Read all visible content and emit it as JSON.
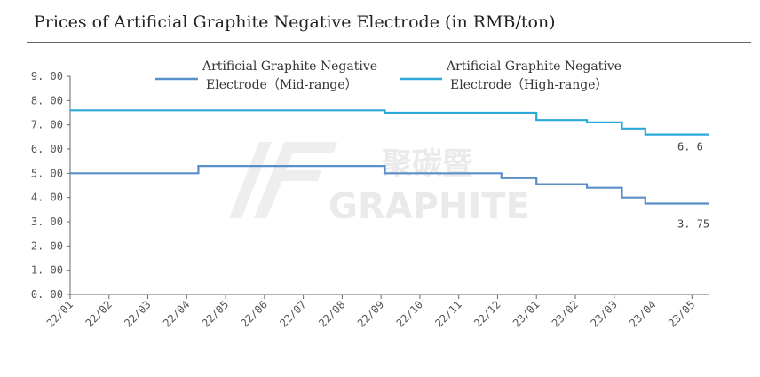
{
  "title": "Prices of Artificial Graphite Negative Electrode (in RMB/ton)",
  "watermark": {
    "brand": "GRAPHITE",
    "brand_cn": "聚碳暨"
  },
  "colors": {
    "mid": "#5b8fc7",
    "high": "#2aa8d8",
    "axis": "#666666"
  },
  "chart_data": {
    "type": "line",
    "title": "Prices of Artificial Graphite Negative Electrode (in RMB/ton)",
    "xlabel": "",
    "ylabel": "",
    "ylim": [
      0,
      9
    ],
    "yticks": [
      "0. 00",
      "1. 00",
      "2. 00",
      "3. 00",
      "4. 00",
      "5. 00",
      "6. 00",
      "7. 00",
      "8. 00",
      "9. 00"
    ],
    "xlim": [
      0,
      16.45
    ],
    "xticks": [
      "22/01",
      "22/02",
      "22/03",
      "22/04",
      "22/05",
      "22/06",
      "22/07",
      "22/08",
      "22/09",
      "22/10",
      "22/11",
      "22/12",
      "23/01",
      "23/02",
      "23/03",
      "23/04",
      "23/05"
    ],
    "grid": false,
    "legend_position": "top",
    "series": [
      {
        "name": "Artificial Graphite Negative Electrode（Mid-range）",
        "color_key": "mid",
        "x": [
          0,
          3.3,
          3.3,
          8.1,
          8.1,
          10.9,
          10.9,
          11.1,
          11.1,
          12.0,
          12.0,
          13.3,
          13.3,
          14.2,
          14.2,
          14.8,
          14.8,
          16.45
        ],
        "y": [
          5.0,
          5.0,
          5.3,
          5.3,
          5.0,
          5.0,
          5.0,
          5.0,
          4.8,
          4.8,
          4.55,
          4.55,
          4.4,
          4.4,
          4.0,
          4.0,
          3.75,
          3.75
        ],
        "end_label": "3. 75"
      },
      {
        "name": "Artificial Graphite Negative Electrode（High-range）",
        "color_key": "high",
        "x": [
          0,
          8.1,
          8.1,
          12.0,
          12.0,
          13.3,
          13.3,
          14.2,
          14.2,
          14.8,
          14.8,
          16.45
        ],
        "y": [
          7.6,
          7.6,
          7.5,
          7.5,
          7.2,
          7.2,
          7.1,
          7.1,
          6.85,
          6.85,
          6.6,
          6.6
        ],
        "end_label": "6. 6"
      }
    ]
  }
}
